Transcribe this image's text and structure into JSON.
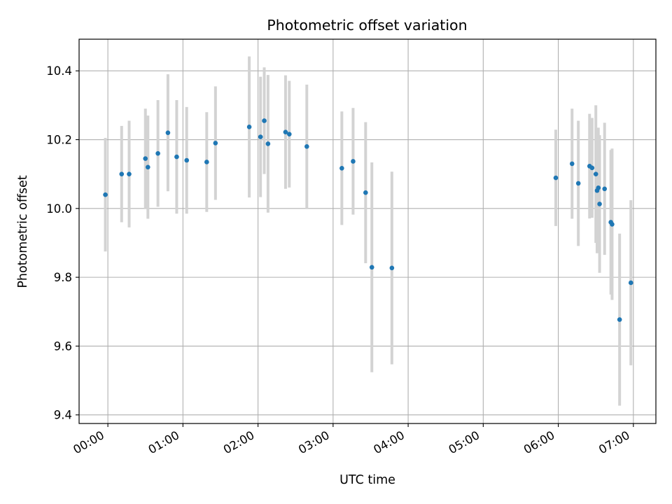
{
  "chart_data": {
    "type": "scatter",
    "title": "Photometric offset variation",
    "xlabel": "UTC time",
    "ylabel": "Photometric offset",
    "xlim": [
      "23:37",
      "07:18"
    ],
    "ylim": [
      9.375,
      10.492
    ],
    "xticks": [
      "00:00",
      "01:00",
      "02:00",
      "03:00",
      "04:00",
      "05:00",
      "06:00",
      "07:00"
    ],
    "yticks": [
      9.4,
      9.6,
      9.8,
      10.0,
      10.2,
      10.4
    ],
    "ytick_labels": [
      "9.4",
      "9.6",
      "9.8",
      "10.0",
      "10.2",
      "10.4"
    ],
    "grid": true,
    "series": [
      {
        "marker_color": "#1f77b4",
        "errorbar_color": "#d3d3d3",
        "points": [
          {
            "t": "23:58",
            "y": 10.04,
            "err": 0.165
          },
          {
            "t": "00:11",
            "y": 10.1,
            "err": 0.14
          },
          {
            "t": "00:17",
            "y": 10.1,
            "err": 0.155
          },
          {
            "t": "00:30",
            "y": 10.145,
            "err": 0.145
          },
          {
            "t": "00:32",
            "y": 10.12,
            "err": 0.15
          },
          {
            "t": "00:40",
            "y": 10.16,
            "err": 0.155
          },
          {
            "t": "00:48",
            "y": 10.22,
            "err": 0.17
          },
          {
            "t": "00:55",
            "y": 10.15,
            "err": 0.165
          },
          {
            "t": "01:03",
            "y": 10.14,
            "err": 0.155
          },
          {
            "t": "01:19",
            "y": 10.135,
            "err": 0.145
          },
          {
            "t": "01:26",
            "y": 10.19,
            "err": 0.165
          },
          {
            "t": "01:53",
            "y": 10.237,
            "err": 0.205
          },
          {
            "t": "02:02",
            "y": 10.208,
            "err": 0.175
          },
          {
            "t": "02:05",
            "y": 10.255,
            "err": 0.155
          },
          {
            "t": "02:08",
            "y": 10.188,
            "err": 0.2
          },
          {
            "t": "02:22",
            "y": 10.222,
            "err": 0.165
          },
          {
            "t": "02:25",
            "y": 10.216,
            "err": 0.155
          },
          {
            "t": "02:39",
            "y": 10.18,
            "err": 0.18
          },
          {
            "t": "03:07",
            "y": 10.117,
            "err": 0.165
          },
          {
            "t": "03:16",
            "y": 10.137,
            "err": 0.155
          },
          {
            "t": "03:26",
            "y": 10.046,
            "err": 0.205
          },
          {
            "t": "03:31",
            "y": 9.829,
            "err": 0.305
          },
          {
            "t": "03:47",
            "y": 9.827,
            "err": 0.28
          },
          {
            "t": "05:58",
            "y": 10.089,
            "err": 0.14
          },
          {
            "t": "06:11",
            "y": 10.13,
            "err": 0.16
          },
          {
            "t": "06:16",
            "y": 10.073,
            "err": 0.182
          },
          {
            "t": "06:25",
            "y": 10.123,
            "err": 0.152
          },
          {
            "t": "06:27",
            "y": 10.118,
            "err": 0.145
          },
          {
            "t": "06:30",
            "y": 10.1,
            "err": 0.2
          },
          {
            "t": "06:31",
            "y": 10.052,
            "err": 0.182
          },
          {
            "t": "06:32",
            "y": 10.06,
            "err": 0.175
          },
          {
            "t": "06:33",
            "y": 10.013,
            "err": 0.2
          },
          {
            "t": "06:37",
            "y": 10.057,
            "err": 0.192
          },
          {
            "t": "06:42",
            "y": 9.96,
            "err": 0.21
          },
          {
            "t": "06:43",
            "y": 9.954,
            "err": 0.22
          },
          {
            "t": "06:49",
            "y": 9.677,
            "err": 0.25
          },
          {
            "t": "06:58",
            "y": 9.784,
            "err": 0.24
          }
        ]
      }
    ]
  }
}
